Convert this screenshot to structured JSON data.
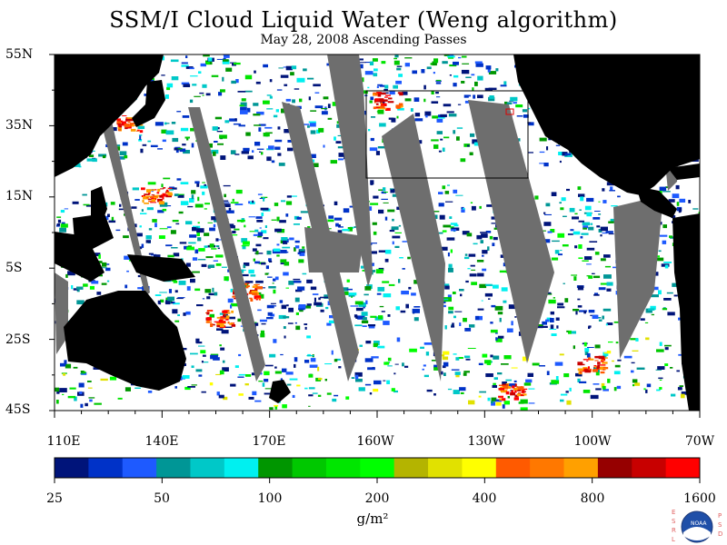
{
  "title": "SSM/I Cloud Liquid Water (Weng algorithm)",
  "subtitle": "May 28, 2008  Ascending Passes",
  "lat_labels": [
    "55N",
    "35N",
    "15N",
    "5S",
    "25S",
    "45S"
  ],
  "lon_labels": [
    "110E",
    "140E",
    "170E",
    "160W",
    "130W",
    "100W",
    "70W"
  ],
  "colorbar": {
    "colors": [
      "#00147a",
      "#0032c8",
      "#1e5aff",
      "#009696",
      "#00c8c8",
      "#00f0f0",
      "#009600",
      "#00c800",
      "#00e600",
      "#00ff00",
      "#b4b400",
      "#e1e100",
      "#ffff00",
      "#ff5a00",
      "#ff7800",
      "#ffa000",
      "#960000",
      "#c80000",
      "#ff0000"
    ],
    "labels": [
      "25",
      "50",
      "100",
      "200",
      "400",
      "800",
      "1600"
    ]
  },
  "units": "g/m²",
  "logo": {
    "left_text": "ESRL",
    "right_text": "PSD",
    "center": "NOAA"
  },
  "colors": {
    "land": "#000000",
    "missing": "#6e6e6e",
    "clear": "#ffffff"
  }
}
